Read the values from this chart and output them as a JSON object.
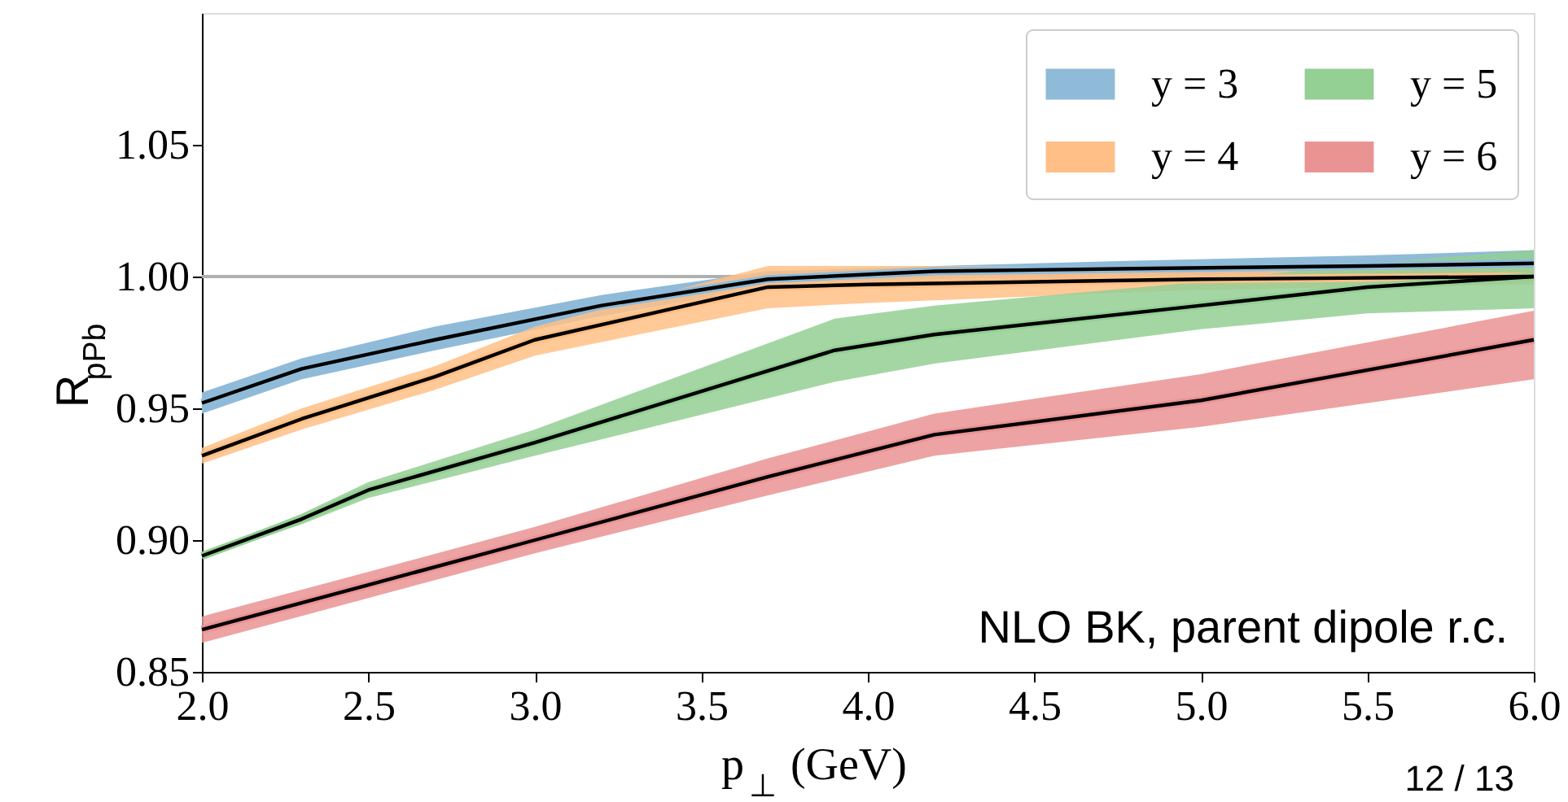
{
  "chart_data": {
    "type": "line",
    "xlabel": "p$_{⊥}$ (GeV)",
    "ylabel": "R$_{pPb}$",
    "xlim": [
      2.0,
      6.0
    ],
    "ylim": [
      0.85,
      1.1
    ],
    "xticks": [
      {
        "value": 2,
        "label": "2.0"
      },
      2.5,
      {
        "value": 3,
        "label": "3.0"
      },
      3.5,
      {
        "value": 4,
        "label": "4.0"
      },
      4.5,
      {
        "value": 5,
        "label": "5.0"
      },
      5.5,
      {
        "value": 6,
        "label": "6.0"
      }
    ],
    "yticks": [
      0.85,
      {
        "value": 0.9,
        "label": "0.90"
      },
      0.95,
      {
        "value": 1.0,
        "label": "1.00"
      },
      1.05
    ],
    "grid": false,
    "legend": "top right",
    "marker": "none",
    "line_style": "solid",
    "ref_lines": [
      {
        "axis": "y",
        "value": 1.0,
        "color": "#b0b0b0"
      }
    ],
    "annotations": [
      "NLO BK, parent dipole r.c.",
      "12 / 13"
    ],
    "series": [
      {
        "name": "y = 3",
        "color": "#8fbbd9",
        "x": [
          2.0,
          2.3,
          2.7,
          3.2,
          3.7,
          4.2,
          4.8,
          5.5,
          6.0
        ],
        "values": [
          0.952,
          0.965,
          0.976,
          0.989,
          0.999,
          1.002,
          1.003,
          1.004,
          1.005
        ],
        "lower": [
          0.948,
          0.961,
          0.972,
          0.985,
          0.996,
          0.999,
          1.0,
          0.999,
          0.997
        ],
        "upper": [
          0.956,
          0.969,
          0.981,
          0.993,
          1.002,
          1.004,
          1.006,
          1.008,
          1.01
        ]
      },
      {
        "name": "y = 4",
        "color": "#ffbf86",
        "x": [
          2.0,
          2.3,
          2.7,
          3.0,
          3.7,
          4.0,
          5.0,
          6.0
        ],
        "values": [
          0.932,
          0.946,
          0.962,
          0.976,
          0.996,
          0.997,
          0.999,
          1.0
        ],
        "lower": [
          0.929,
          0.942,
          0.957,
          0.97,
          0.988,
          0.99,
          0.995,
          0.997
        ],
        "upper": [
          0.935,
          0.95,
          0.966,
          0.981,
          1.004,
          1.004,
          1.004,
          1.004
        ]
      },
      {
        "name": "y = 5",
        "color": "#94cf94",
        "x": [
          2.0,
          2.3,
          2.5,
          3.0,
          3.9,
          4.2,
          5.0,
          5.5,
          6.0
        ],
        "values": [
          0.894,
          0.908,
          0.919,
          0.937,
          0.972,
          0.978,
          0.989,
          0.996,
          1.0
        ],
        "lower": [
          0.893,
          0.906,
          0.916,
          0.932,
          0.96,
          0.967,
          0.98,
          0.986,
          0.988
        ],
        "upper": [
          0.895,
          0.91,
          0.922,
          0.942,
          0.984,
          0.989,
          0.998,
          1.005,
          1.01
        ]
      },
      {
        "name": "y = 6",
        "color": "#ea9393",
        "x": [
          2.0,
          2.5,
          3.0,
          3.7,
          4.2,
          5.0,
          6.0
        ],
        "values": [
          0.866,
          0.883,
          0.9,
          0.924,
          0.94,
          0.953,
          0.976
        ],
        "lower": [
          0.861,
          0.878,
          0.895,
          0.917,
          0.932,
          0.943,
          0.961
        ],
        "upper": [
          0.871,
          0.888,
          0.905,
          0.931,
          0.948,
          0.963,
          0.987
        ]
      },
      {
        "color": "#000000",
        "x": [
          2.0,
          2.3,
          2.7,
          3.2,
          3.7,
          4.2,
          4.8,
          5.5,
          6.0
        ],
        "values": [
          0.952,
          0.965,
          0.976,
          0.989,
          0.999,
          1.002,
          1.003,
          1.004,
          1.005
        ]
      },
      {
        "color": "#000000",
        "x": [
          2.0,
          2.3,
          2.7,
          3.0,
          3.7,
          4.0,
          5.0,
          6.0
        ],
        "values": [
          0.932,
          0.946,
          0.962,
          0.976,
          0.996,
          0.997,
          0.999,
          1.0
        ]
      },
      {
        "color": "#000000",
        "x": [
          2.0,
          2.3,
          2.5,
          3.0,
          3.9,
          4.2,
          5.0,
          5.5,
          6.0
        ],
        "values": [
          0.894,
          0.908,
          0.919,
          0.937,
          0.972,
          0.978,
          0.989,
          0.996,
          1.0
        ]
      },
      {
        "color": "#000000",
        "x": [
          2.0,
          2.5,
          3.0,
          3.7,
          4.2,
          5.0,
          6.0
        ],
        "values": [
          0.866,
          0.883,
          0.9,
          0.924,
          0.94,
          0.953,
          0.976
        ]
      }
    ]
  }
}
